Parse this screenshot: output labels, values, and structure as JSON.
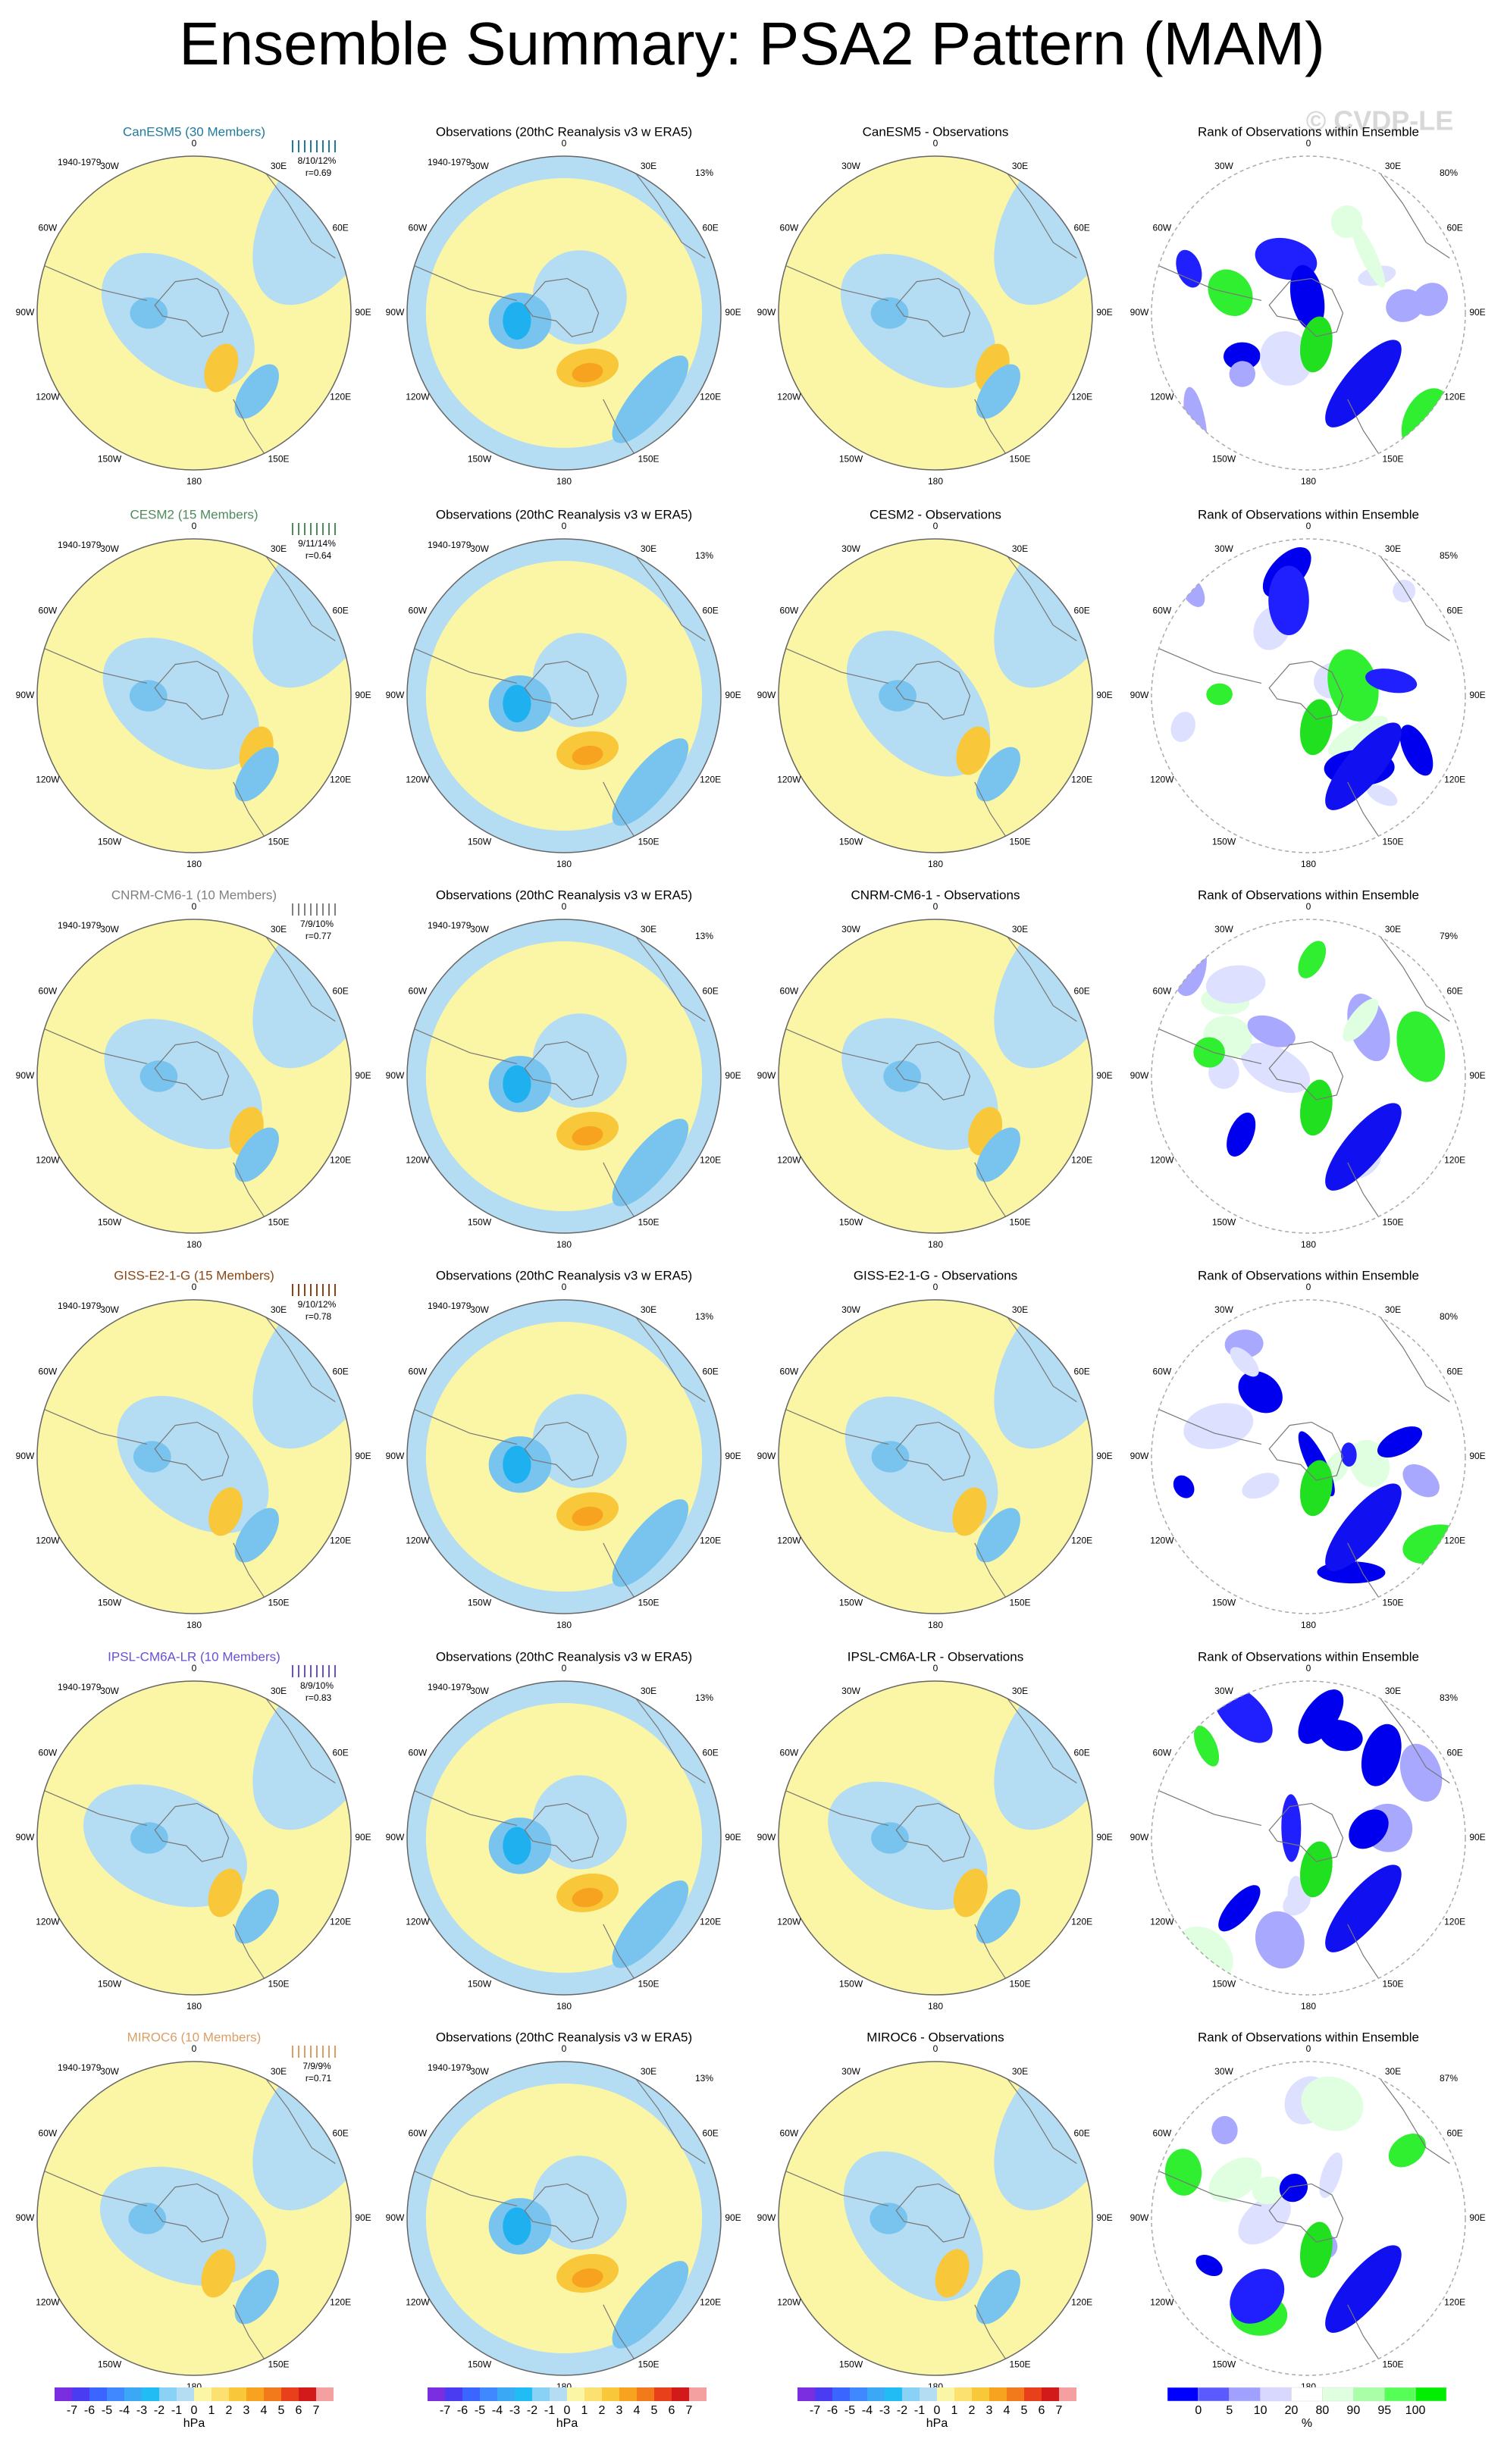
{
  "title": "Ensemble Summary: PSA2 Pattern (MAM)",
  "watermark": "© CVDP-LE",
  "period": "1940-1979",
  "obs_title": "Observations (20thC Reanalysis v3 w ERA5)",
  "obs_pct": "13%",
  "rank_title": "Rank of Observations within Ensemble",
  "map_labels": [
    "0",
    "30E",
    "60E",
    "90E",
    "120E",
    "150E",
    "180",
    "150W",
    "120W",
    "90W",
    "60W",
    "30W"
  ],
  "rows": [
    {
      "model": "CanESM5 (30 Members)",
      "color": "#1f7a9c",
      "stats": "8/10/12%",
      "r": "r=0.69",
      "diff_title": "CanESM5 - Observations",
      "rank_pct": "80%"
    },
    {
      "model": "CESM2 (15 Members)",
      "color": "#4f8a5c",
      "stats": "9/11/14%",
      "r": "r=0.64",
      "diff_title": "CESM2 - Observations",
      "rank_pct": "85%"
    },
    {
      "model": "CNRM-CM6-1 (10 Members)",
      "color": "#808080",
      "stats": "7/9/10%",
      "r": "r=0.77",
      "diff_title": "CNRM-CM6-1 - Observations",
      "rank_pct": "79%"
    },
    {
      "model": "GISS-E2-1-G (15 Members)",
      "color": "#8b4513",
      "stats": "9/10/12%",
      "r": "r=0.78",
      "diff_title": "GISS-E2-1-G - Observations",
      "rank_pct": "80%"
    },
    {
      "model": "IPSL-CM6A-LR (10 Members)",
      "color": "#6a50d0",
      "stats": "8/9/10%",
      "r": "r=0.83",
      "diff_title": "IPSL-CM6A-LR - Observations",
      "rank_pct": "83%"
    },
    {
      "model": "MIROC6 (10 Members)",
      "color": "#d9a066",
      "stats": "7/9/9%",
      "r": "r=0.71",
      "diff_title": "MIROC6 - Observations",
      "rank_pct": "87%"
    }
  ],
  "colorbars": {
    "hpa": {
      "labels": [
        -7,
        -6,
        -5,
        -4,
        -3,
        -2,
        -1,
        0,
        1,
        2,
        3,
        4,
        5,
        6,
        7
      ],
      "unit": "hPa"
    },
    "rank": {
      "labels": [
        0,
        5,
        10,
        20,
        80,
        90,
        95,
        100
      ],
      "unit": "%"
    }
  }
}
